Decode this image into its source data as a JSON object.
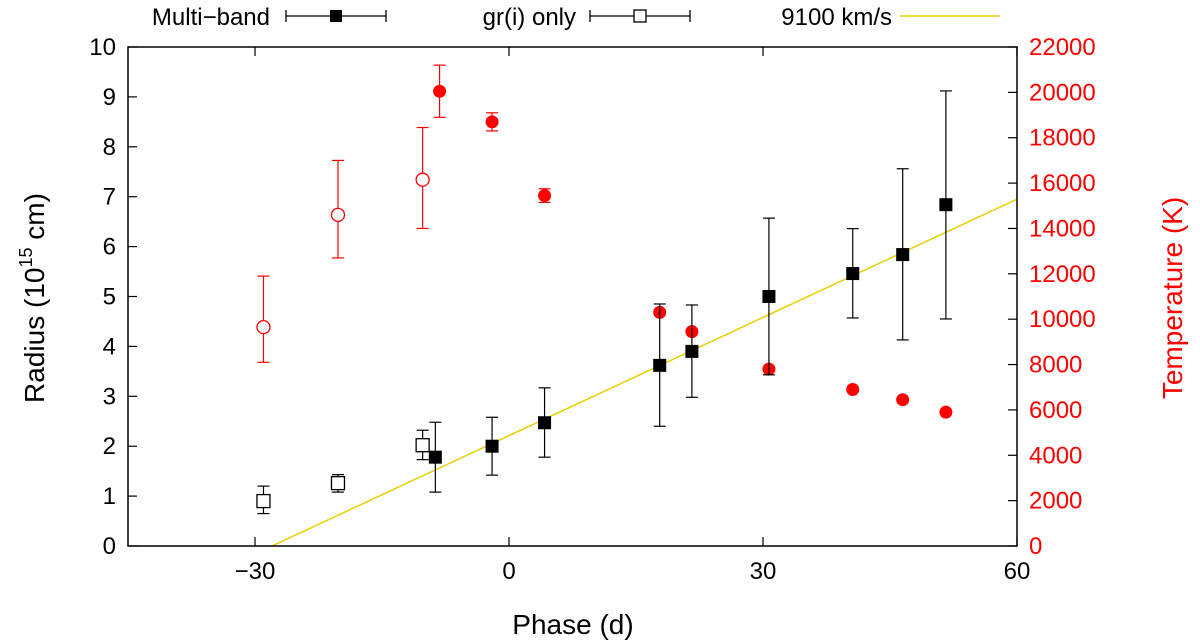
{
  "chart_data": {
    "type": "scatter",
    "x_axis": {
      "label": "Phase (d)",
      "range": [
        -45,
        60
      ],
      "ticks": [
        -30,
        0,
        30,
        60
      ]
    },
    "y_axis_left": {
      "label_main": "Radius (10",
      "label_sup": "15",
      "label_end": " cm)",
      "range": [
        0,
        10
      ],
      "ticks": [
        0,
        1,
        2,
        3,
        4,
        5,
        6,
        7,
        8,
        9,
        10
      ]
    },
    "y_axis_right": {
      "label": "Temperature (K)",
      "range": [
        0,
        22000
      ],
      "ticks": [
        0,
        2000,
        4000,
        6000,
        8000,
        10000,
        12000,
        14000,
        16000,
        18000,
        20000,
        22000
      ]
    },
    "legend": [
      {
        "label": "Multi−band",
        "marker": "filled-square"
      },
      {
        "label": "gr(i) only",
        "marker": "open-square"
      },
      {
        "label": "9100 km/s",
        "marker": "line"
      }
    ],
    "radius_multiband": [
      {
        "x": -8.7,
        "y": 1.78,
        "lo": 1.08,
        "hi": 2.48
      },
      {
        "x": -2.0,
        "y": 2.0,
        "lo": 1.42,
        "hi": 2.58
      },
      {
        "x": 4.2,
        "y": 2.47,
        "lo": 1.78,
        "hi": 3.17
      },
      {
        "x": 17.8,
        "y": 3.62,
        "lo": 2.4,
        "hi": 4.85
      },
      {
        "x": 21.6,
        "y": 3.9,
        "lo": 2.98,
        "hi": 4.83
      },
      {
        "x": 30.7,
        "y": 5.0,
        "lo": 3.43,
        "hi": 6.57
      },
      {
        "x": 40.6,
        "y": 5.46,
        "lo": 4.57,
        "hi": 6.36
      },
      {
        "x": 46.5,
        "y": 5.84,
        "lo": 4.13,
        "hi": 7.56
      },
      {
        "x": 51.6,
        "y": 6.84,
        "lo": 4.55,
        "hi": 9.12
      }
    ],
    "radius_gri_only": [
      {
        "x": -29.0,
        "y": 0.9,
        "lo": 0.65,
        "hi": 1.2
      },
      {
        "x": -20.2,
        "y": 1.26,
        "lo": 1.08,
        "hi": 1.43
      },
      {
        "x": -10.2,
        "y": 2.02,
        "lo": 1.73,
        "hi": 2.32
      }
    ],
    "temperature_filled": [
      {
        "x": -8.2,
        "y": 20050,
        "lo": 18900,
        "hi": 21200
      },
      {
        "x": -2.0,
        "y": 18700,
        "lo": 18300,
        "hi": 19100
      },
      {
        "x": 4.2,
        "y": 15450,
        "lo": 15150,
        "hi": 15750
      },
      {
        "x": 17.8,
        "y": 10300
      },
      {
        "x": 21.6,
        "y": 9450
      },
      {
        "x": 30.7,
        "y": 7800
      },
      {
        "x": 40.6,
        "y": 6900
      },
      {
        "x": 46.5,
        "y": 6450
      },
      {
        "x": 51.6,
        "y": 5900
      }
    ],
    "temperature_open": [
      {
        "x": -29.0,
        "y": 9650,
        "lo": 8100,
        "hi": 11900
      },
      {
        "x": -20.2,
        "y": 14600,
        "lo": 12700,
        "hi": 17000
      },
      {
        "x": -10.2,
        "y": 16150,
        "lo": 14000,
        "hi": 18450
      }
    ],
    "fit_line": {
      "velocity_label": "9100 km/s",
      "x": [
        -28.0,
        60.0
      ],
      "y": [
        0.0,
        6.95
      ],
      "color": "#e8d000"
    },
    "colors": {
      "radius": "#000000",
      "temperature": "#ff0000"
    }
  }
}
